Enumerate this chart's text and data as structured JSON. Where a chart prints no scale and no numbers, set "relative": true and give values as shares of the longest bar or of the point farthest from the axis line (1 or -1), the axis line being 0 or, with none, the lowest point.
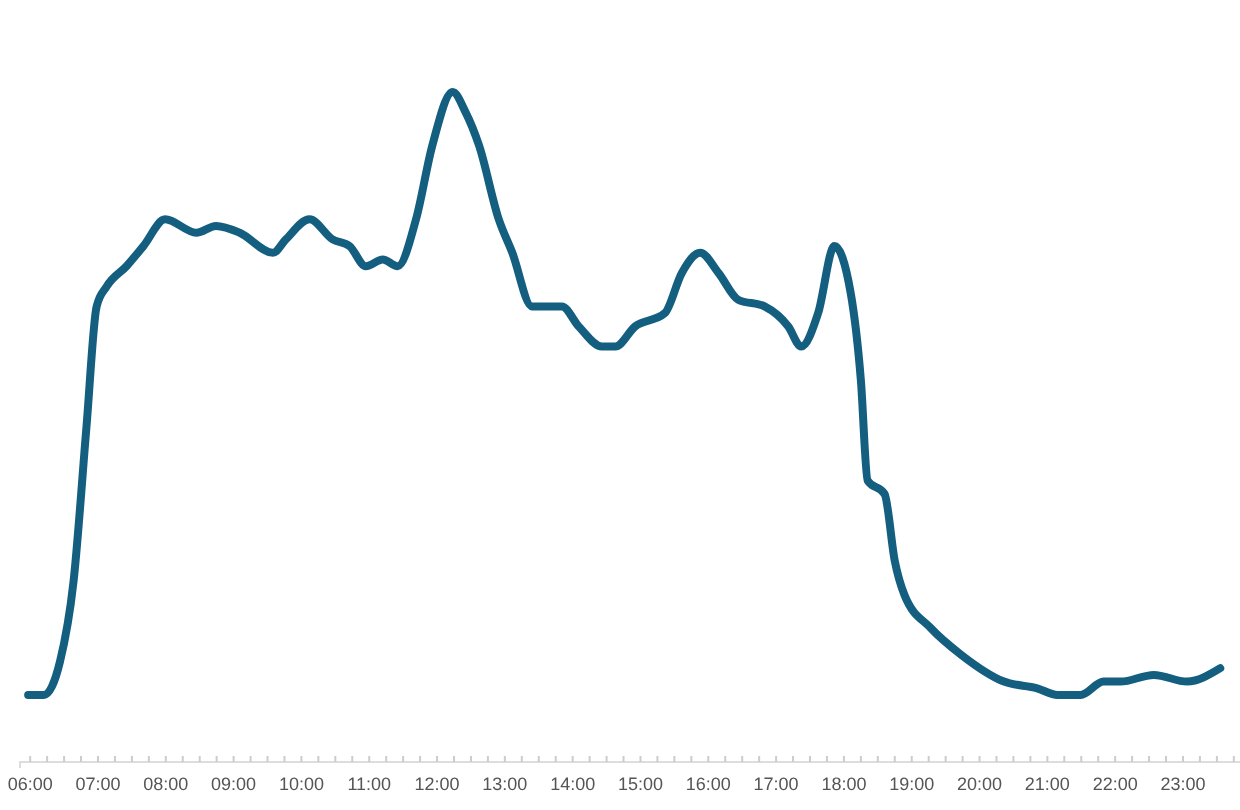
{
  "chart_data": {
    "type": "line",
    "relative": true,
    "grid": false,
    "marker": "none",
    "line_style": "solid",
    "xlim": [
      5.85,
      23.9
    ],
    "xticks": [
      {
        "value": 6,
        "label": "06:00"
      },
      {
        "value": 6.25,
        "label": null
      },
      {
        "value": 6.5,
        "label": null
      },
      {
        "value": 6.75,
        "label": null
      },
      {
        "value": 7,
        "label": "07:00"
      },
      {
        "value": 7.25,
        "label": null
      },
      {
        "value": 7.5,
        "label": null
      },
      {
        "value": 7.75,
        "label": null
      },
      {
        "value": 8,
        "label": "08:00"
      },
      {
        "value": 8.25,
        "label": null
      },
      {
        "value": 8.5,
        "label": null
      },
      {
        "value": 8.75,
        "label": null
      },
      {
        "value": 9,
        "label": "09:00"
      },
      {
        "value": 9.25,
        "label": null
      },
      {
        "value": 9.5,
        "label": null
      },
      {
        "value": 9.75,
        "label": null
      },
      {
        "value": 10,
        "label": "10:00"
      },
      {
        "value": 10.25,
        "label": null
      },
      {
        "value": 10.5,
        "label": null
      },
      {
        "value": 10.75,
        "label": null
      },
      {
        "value": 11,
        "label": "11:00"
      },
      {
        "value": 11.25,
        "label": null
      },
      {
        "value": 11.5,
        "label": null
      },
      {
        "value": 11.75,
        "label": null
      },
      {
        "value": 12,
        "label": "12:00"
      },
      {
        "value": 12.25,
        "label": null
      },
      {
        "value": 12.5,
        "label": null
      },
      {
        "value": 12.75,
        "label": null
      },
      {
        "value": 13,
        "label": "13:00"
      },
      {
        "value": 13.25,
        "label": null
      },
      {
        "value": 13.5,
        "label": null
      },
      {
        "value": 13.75,
        "label": null
      },
      {
        "value": 14,
        "label": "14:00"
      },
      {
        "value": 14.25,
        "label": null
      },
      {
        "value": 14.5,
        "label": null
      },
      {
        "value": 14.75,
        "label": null
      },
      {
        "value": 15,
        "label": "15:00"
      },
      {
        "value": 15.25,
        "label": null
      },
      {
        "value": 15.5,
        "label": null
      },
      {
        "value": 15.75,
        "label": null
      },
      {
        "value": 16,
        "label": "16:00"
      },
      {
        "value": 16.25,
        "label": null
      },
      {
        "value": 16.5,
        "label": null
      },
      {
        "value": 16.75,
        "label": null
      },
      {
        "value": 17,
        "label": "17:00"
      },
      {
        "value": 17.25,
        "label": null
      },
      {
        "value": 17.5,
        "label": null
      },
      {
        "value": 17.75,
        "label": null
      },
      {
        "value": 18,
        "label": "18:00"
      },
      {
        "value": 18.25,
        "label": null
      },
      {
        "value": 18.5,
        "label": null
      },
      {
        "value": 18.75,
        "label": null
      },
      {
        "value": 19,
        "label": "19:00"
      },
      {
        "value": 19.25,
        "label": null
      },
      {
        "value": 19.5,
        "label": null
      },
      {
        "value": 19.75,
        "label": null
      },
      {
        "value": 20,
        "label": "20:00"
      },
      {
        "value": 20.25,
        "label": null
      },
      {
        "value": 20.5,
        "label": null
      },
      {
        "value": 20.75,
        "label": null
      },
      {
        "value": 21,
        "label": "21:00"
      },
      {
        "value": 21.25,
        "label": null
      },
      {
        "value": 21.5,
        "label": null
      },
      {
        "value": 21.75,
        "label": null
      },
      {
        "value": 22,
        "label": "22:00"
      },
      {
        "value": 22.25,
        "label": null
      },
      {
        "value": 22.5,
        "label": null
      },
      {
        "value": 22.75,
        "label": null
      },
      {
        "value": 23,
        "label": "23:00"
      },
      {
        "value": 23.25,
        "label": null
      },
      {
        "value": 23.5,
        "label": null
      },
      {
        "value": 23.75,
        "label": null
      }
    ],
    "x": [
      5.97,
      6.2,
      6.44,
      6.64,
      6.83,
      6.98,
      7.13,
      7.42,
      7.67,
      7.99,
      8.45,
      8.74,
      9.09,
      9.58,
      9.77,
      10.12,
      10.46,
      10.71,
      10.95,
      11.2,
      11.42,
      11.69,
      11.93,
      12.23,
      12.42,
      12.62,
      12.91,
      13.11,
      13.4,
      13.84,
      14.09,
      14.43,
      14.63,
      14.92,
      15.36,
      15.61,
      15.88,
      16.15,
      16.44,
      16.83,
      17.18,
      17.37,
      17.62,
      17.86,
      18.1,
      18.25,
      18.35,
      18.6,
      18.75,
      18.89,
      19.28,
      19.73,
      20.36,
      20.85,
      21.15,
      21.49,
      21.83,
      22.08,
      22.57,
      23.06,
      23.55
    ],
    "series": [
      {
        "color": "#145f80",
        "values": [
          0.1,
          0.1,
          0.15,
          0.27,
          0.5,
          0.68,
          0.71,
          0.74,
          0.77,
          0.81,
          0.79,
          0.8,
          0.79,
          0.76,
          0.78,
          0.81,
          0.78,
          0.77,
          0.74,
          0.75,
          0.74,
          0.81,
          0.92,
          1,
          0.97,
          0.92,
          0.81,
          0.76,
          0.68,
          0.68,
          0.65,
          0.62,
          0.62,
          0.65,
          0.67,
          0.73,
          0.76,
          0.73,
          0.69,
          0.68,
          0.65,
          0.62,
          0.67,
          0.77,
          0.7,
          0.57,
          0.42,
          0.4,
          0.3,
          0.25,
          0.2,
          0.16,
          0.12,
          0.11,
          0.1,
          0.1,
          0.12,
          0.12,
          0.13,
          0.12,
          0.14
        ]
      }
    ]
  }
}
